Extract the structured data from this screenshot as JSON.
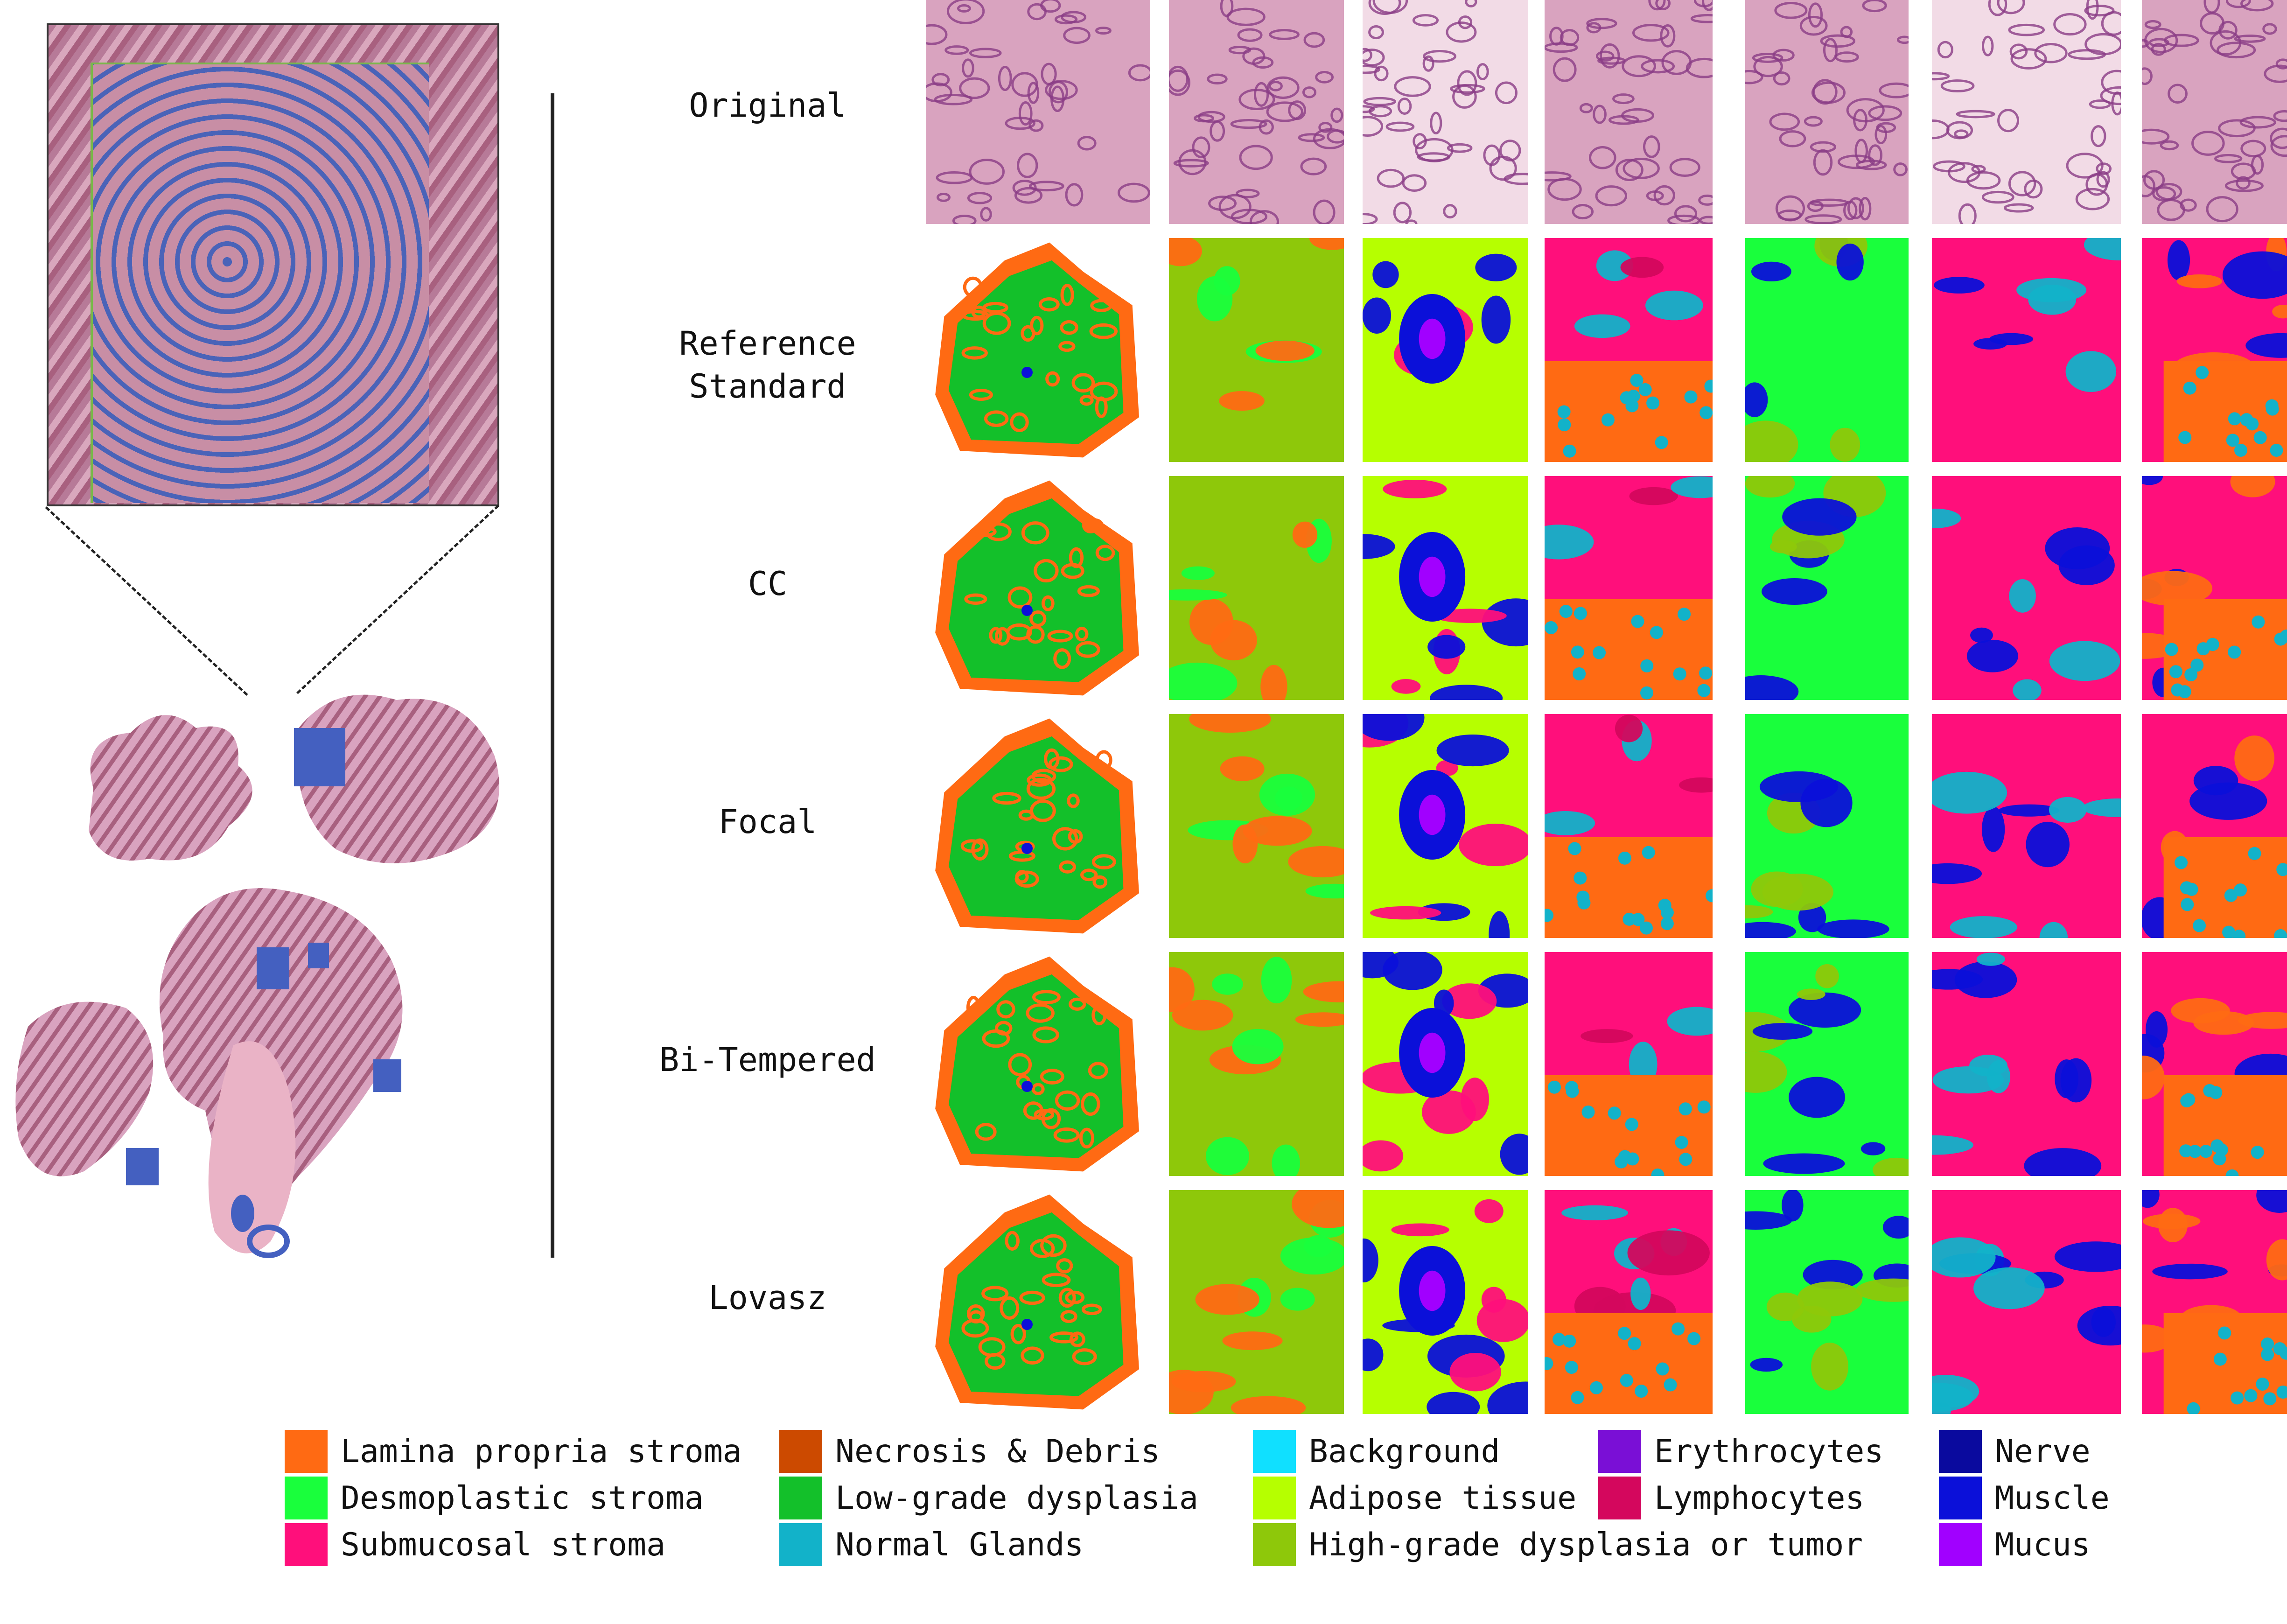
{
  "row_labels": [
    "Original",
    "Reference\nStandard",
    "CC",
    "Focal",
    "Bi-Tempered",
    "Lovasz"
  ],
  "legend": [
    {
      "label": "Lamina propria stroma",
      "color": "#ff6a13"
    },
    {
      "label": "Desmoplastic stroma",
      "color": "#19ff3c"
    },
    {
      "label": "Submucosal stroma",
      "color": "#ff0f7b"
    },
    {
      "label": "Necrosis & Debris",
      "color": "#cc4a00"
    },
    {
      "label": "Low-grade dysplasia",
      "color": "#13c02a"
    },
    {
      "label": "Normal Glands",
      "color": "#12b2c9"
    },
    {
      "label": "Background",
      "color": "#10e0ff"
    },
    {
      "label": "Adipose tissue",
      "color": "#b6ff00"
    },
    {
      "label": "High-grade dysplasia or tumor",
      "color": "#8ec80a"
    },
    {
      "label": "Erythrocytes",
      "color": "#7a0fd6"
    },
    {
      "label": "Lymphocytes",
      "color": "#d4075d"
    },
    {
      "label": "Nerve",
      "color": "#0a0a9e"
    },
    {
      "label": "Muscle",
      "color": "#0b10d9"
    },
    {
      "label": "Mucus",
      "color": "#a100ff"
    }
  ],
  "tissue_palette": {
    "he_pink": "#d9a3bf",
    "he_purple": "#8a3c86",
    "he_light": "#f2dbe6"
  }
}
